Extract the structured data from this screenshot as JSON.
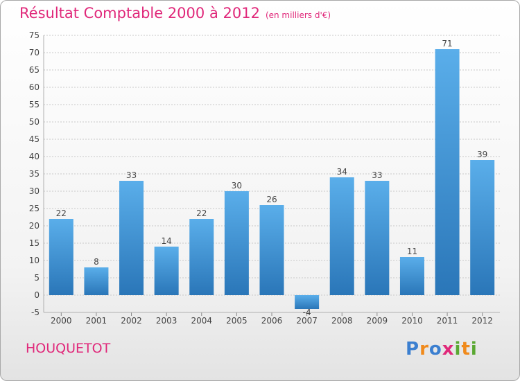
{
  "chart_data": {
    "type": "bar",
    "title": "Résultat Comptable 2000 à 2012",
    "subtitle": "(en milliers d'€)",
    "categories": [
      "2000",
      "2001",
      "2002",
      "2003",
      "2004",
      "2005",
      "2006",
      "2007",
      "2008",
      "2009",
      "2010",
      "2011",
      "2012"
    ],
    "values": [
      22,
      8,
      33,
      14,
      22,
      30,
      26,
      -4,
      34,
      33,
      11,
      71,
      39
    ],
    "value_labels": [
      "22",
      "8",
      "33",
      "14",
      "22",
      "30",
      "26",
      "-4",
      "34",
      "33",
      "11",
      "71",
      "39"
    ],
    "ylim": [
      -5,
      75
    ],
    "yticks": [
      -5,
      0,
      5,
      10,
      15,
      20,
      25,
      30,
      35,
      40,
      45,
      50,
      55,
      60,
      65,
      70,
      75
    ],
    "grid": true,
    "xlabel": "",
    "ylabel": "",
    "colors": {
      "bar_top": "#5aaeea",
      "bar_bottom": "#2a76b8",
      "grid": "#c8c8c8",
      "text": "#444444",
      "title": "#e0287a"
    }
  },
  "footer": {
    "place": "HOUQUETOT"
  },
  "logo": {
    "letters": [
      "P",
      "r",
      "o",
      "x",
      "i",
      "t",
      "i"
    ],
    "colors": [
      "#3b7fd0",
      "#f08a1c",
      "#3b7fd0",
      "#e0287a",
      "#5aa832",
      "#f08a1c",
      "#5aa832"
    ]
  }
}
